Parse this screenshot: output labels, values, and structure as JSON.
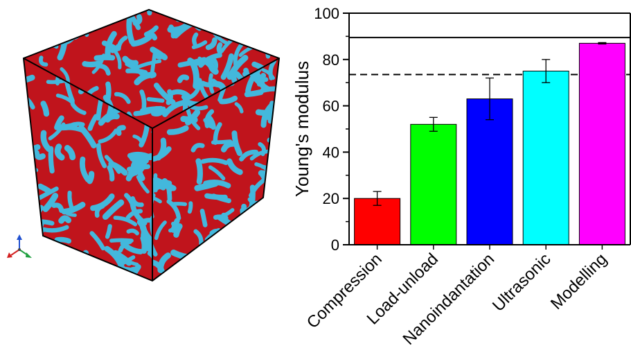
{
  "colors": {
    "cube_matrix": "#c0141c",
    "cube_phase": "#43b8dc",
    "axis_x": "#d32020",
    "axis_y": "#2050d0",
    "axis_z": "#20a040"
  },
  "chart_data": {
    "type": "bar",
    "title": "",
    "xlabel": "",
    "ylabel": "Young's modulus",
    "ylim": [
      0,
      100
    ],
    "yticks": [
      0,
      20,
      40,
      60,
      80,
      100
    ],
    "grid": false,
    "categories": [
      "Compression",
      "Load-unload",
      "Nanoindantation",
      "Ultrasonic",
      "Modelling"
    ],
    "values": [
      20,
      52,
      63,
      75,
      87
    ],
    "errors": [
      3,
      3,
      9,
      5,
      0.3
    ],
    "bar_colors": [
      "#ff0000",
      "#00ff00",
      "#0000ff",
      "#00ffff",
      "#ff00ff"
    ],
    "reference_lines": [
      {
        "value": 89.5,
        "style": "solid"
      },
      {
        "value": 73.5,
        "style": "dashed"
      }
    ]
  }
}
